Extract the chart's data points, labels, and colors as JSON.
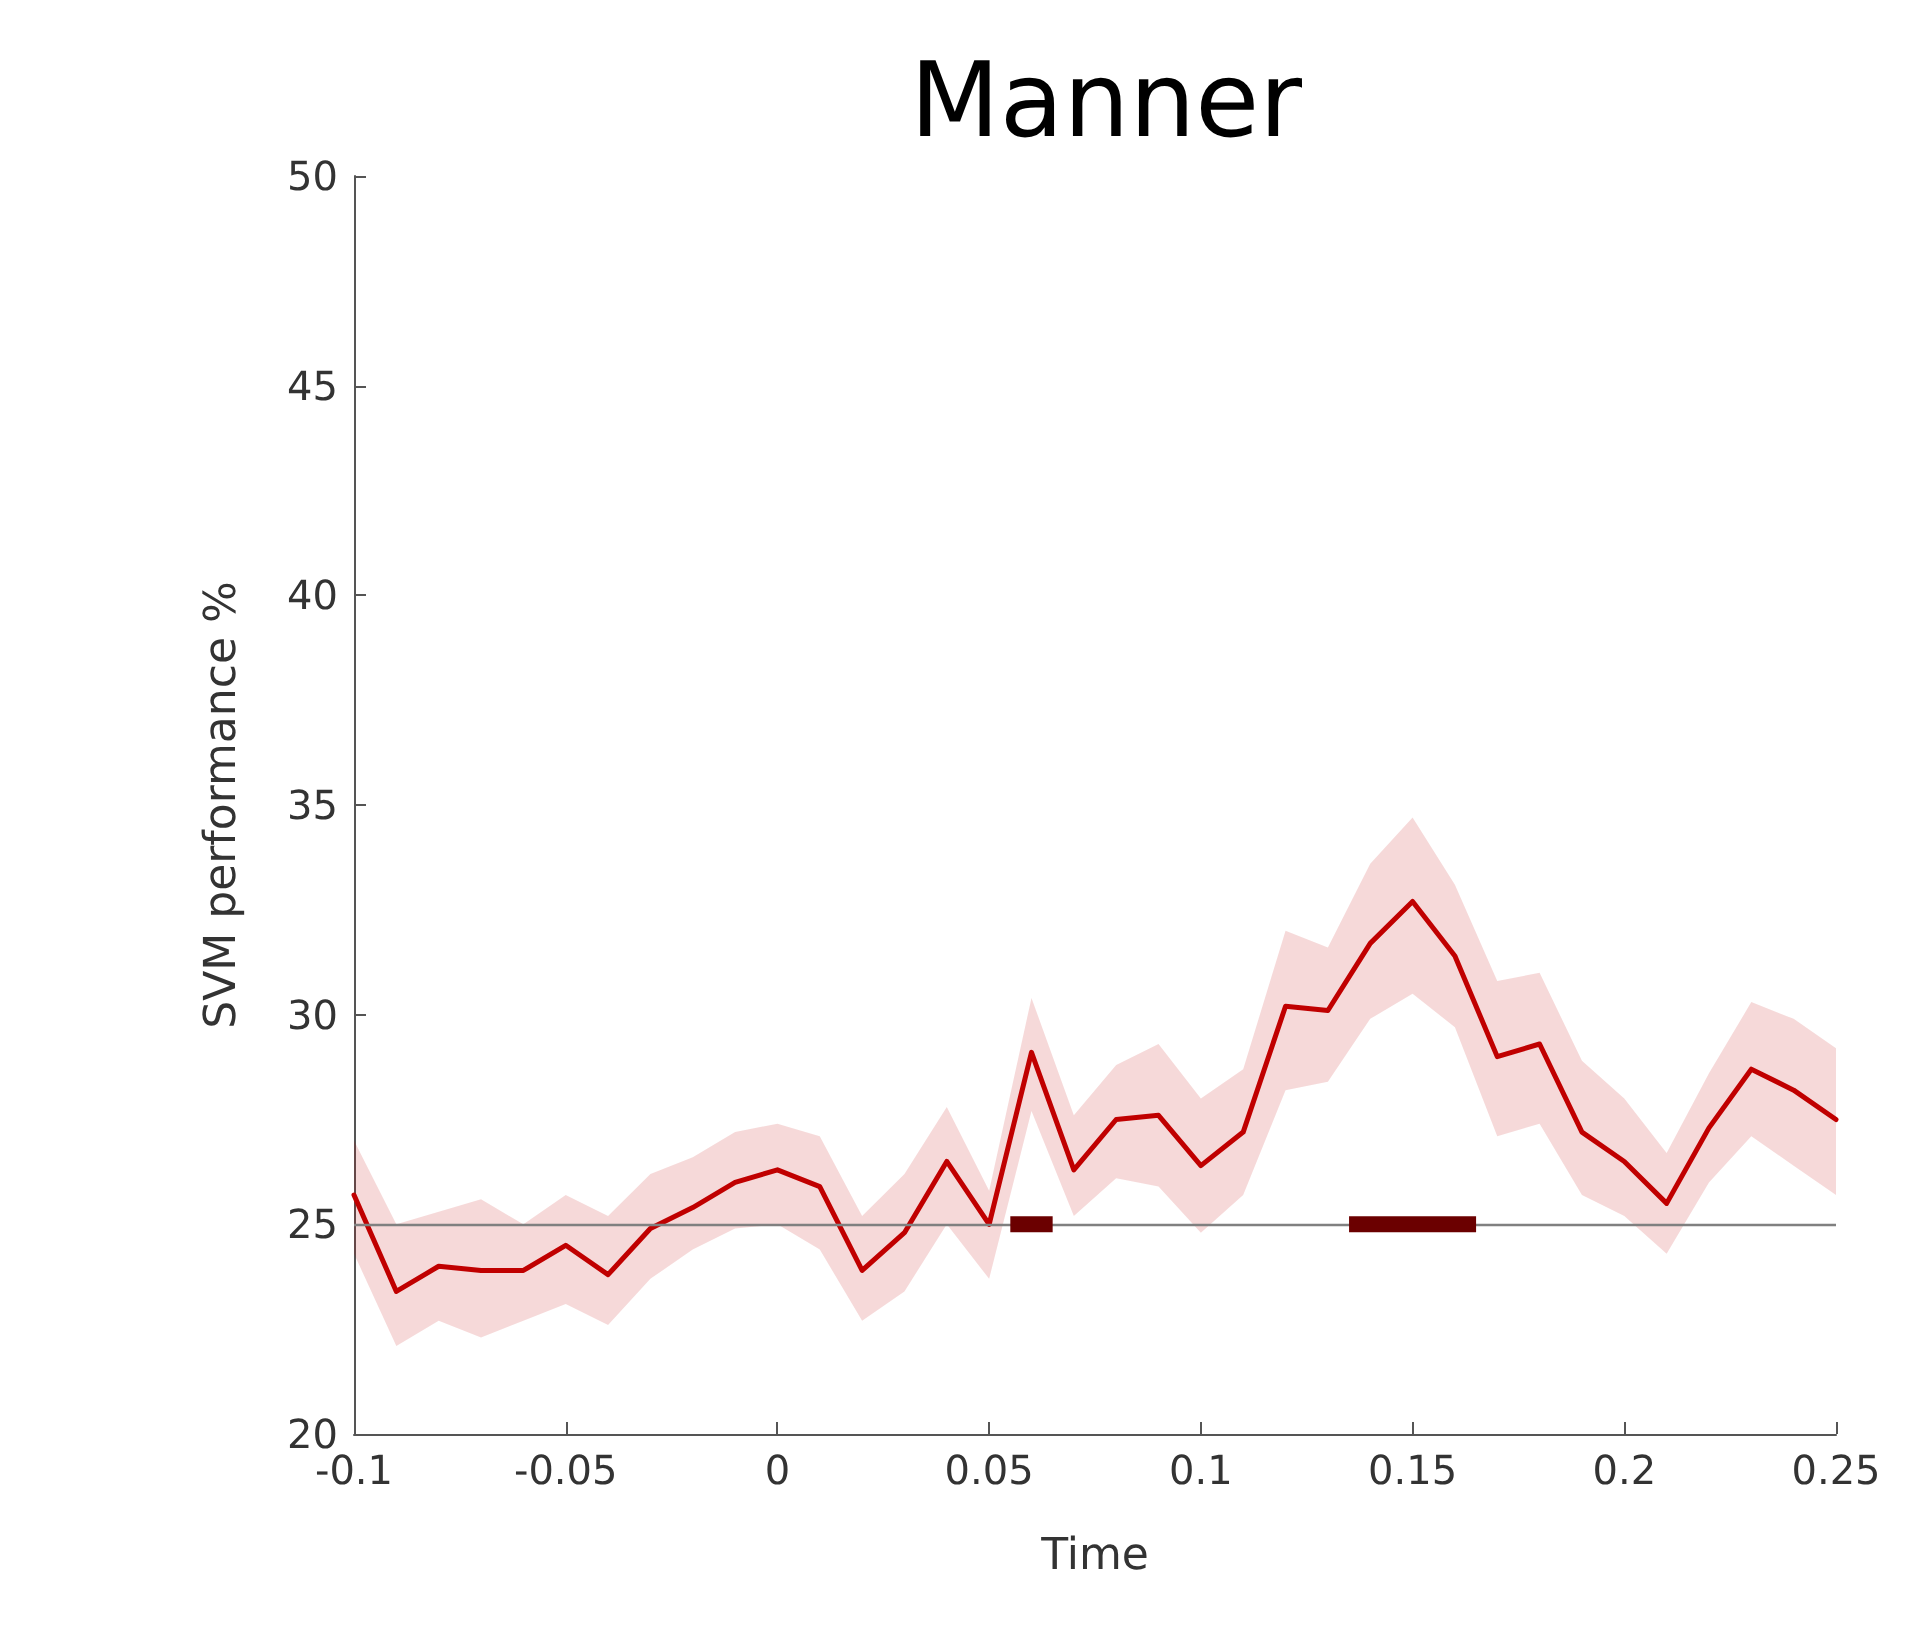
{
  "chart_data": {
    "type": "line",
    "title": "Manner",
    "xlabel": "Time",
    "ylabel": "SVM performance %",
    "x": [
      -0.1,
      -0.09,
      -0.08,
      -0.07,
      -0.06,
      -0.05,
      -0.04,
      -0.03,
      -0.02,
      -0.01,
      0,
      0.01,
      0.02,
      0.03,
      0.04,
      0.05,
      0.06,
      0.07,
      0.08,
      0.09,
      0.1,
      0.11,
      0.12,
      0.13,
      0.14,
      0.15,
      0.16,
      0.17,
      0.18,
      0.19,
      0.2,
      0.21,
      0.22,
      0.23,
      0.24,
      0.25
    ],
    "series": [
      {
        "color": "#c00000",
        "values": [
          25.7,
          23.4,
          24.0,
          23.9,
          23.9,
          24.5,
          23.8,
          24.9,
          25.4,
          26.0,
          26.3,
          25.9,
          23.9,
          24.8,
          26.5,
          25.0,
          29.1,
          26.3,
          27.5,
          27.6,
          26.4,
          27.2,
          30.2,
          30.1,
          31.7,
          32.7,
          31.4,
          29.0,
          29.3,
          27.2,
          26.5,
          25.5,
          27.3,
          28.7,
          28.2,
          27.5
        ],
        "lower": [
          24.3,
          22.1,
          22.7,
          22.3,
          22.7,
          23.1,
          22.6,
          23.7,
          24.4,
          24.9,
          25.0,
          24.4,
          22.7,
          23.4,
          25.0,
          23.7,
          27.7,
          25.2,
          26.1,
          25.9,
          24.8,
          25.7,
          28.2,
          28.4,
          29.9,
          30.5,
          29.7,
          27.1,
          27.4,
          25.7,
          25.2,
          24.3,
          26.0,
          27.1,
          26.4,
          25.7
        ],
        "upper": [
          27.0,
          25.0,
          25.3,
          25.6,
          25.0,
          25.7,
          25.2,
          26.2,
          26.6,
          27.2,
          27.4,
          27.1,
          25.2,
          26.2,
          27.8,
          25.8,
          30.4,
          27.6,
          28.8,
          29.3,
          28.0,
          28.7,
          32.0,
          31.6,
          33.6,
          34.7,
          33.1,
          30.8,
          31.0,
          28.9,
          28.0,
          26.7,
          28.6,
          30.3,
          29.9,
          29.2
        ]
      },
      {
        "color": "#6b0000",
        "x": [
          0.055,
          0.065
        ],
        "values": [
          25,
          25
        ]
      },
      {
        "color": "#6b0000",
        "x": [
          0.135,
          0.165
        ],
        "values": [
          25,
          25
        ]
      }
    ],
    "ref_lines": [
      {
        "axis": "y",
        "value": 25,
        "color": "#808080"
      }
    ],
    "xlim": [
      -0.1,
      0.25
    ],
    "xticks": [
      -0.1,
      -0.05,
      0,
      0.05,
      0.1,
      0.15,
      0.2,
      0.25
    ],
    "ylim": [
      20,
      50
    ],
    "yticks": [
      20,
      25,
      30,
      35,
      40,
      45,
      50
    ],
    "grid": false,
    "marker": "none",
    "line_style": "solid"
  }
}
